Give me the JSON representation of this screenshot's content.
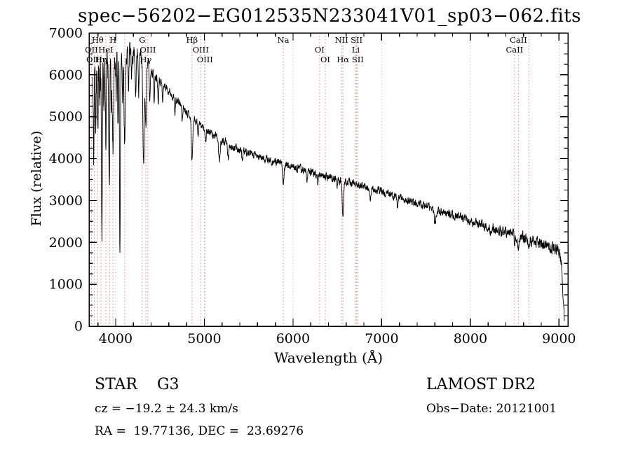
{
  "chart_data": {
    "type": "line",
    "title": "spec−56202−EG012535N233041V01_sp03−062.fits",
    "xlabel": "Wavelength (Å)",
    "ylabel": "Flux (relative)",
    "xlim": [
      3700,
      9100
    ],
    "ylim": [
      0,
      7000
    ],
    "xticks": [
      4000,
      5000,
      6000,
      7000,
      8000,
      9000
    ],
    "yticks": [
      0,
      1000,
      2000,
      3000,
      4000,
      5000,
      6000,
      7000
    ],
    "x_minor_step": 200,
    "y_minor_step": 250,
    "grid_on": true,
    "grid_color": "#c6c6c6",
    "line_marker_color": "#e08888",
    "series_color": "#000000",
    "x_start": 3740,
    "x_end": 9062,
    "x_step": 2,
    "continuum": [
      [
        3740,
        6050
      ],
      [
        3800,
        6250
      ],
      [
        3900,
        6350
      ],
      [
        4000,
        6450
      ],
      [
        4100,
        6550
      ],
      [
        4200,
        6550
      ],
      [
        4300,
        6420
      ],
      [
        4400,
        6130
      ],
      [
        4500,
        5870
      ],
      [
        4600,
        5620
      ],
      [
        4700,
        5370
      ],
      [
        4800,
        5130
      ],
      [
        4900,
        4920
      ],
      [
        5000,
        4720
      ],
      [
        5100,
        4560
      ],
      [
        5200,
        4430
      ],
      [
        5300,
        4310
      ],
      [
        5400,
        4210
      ],
      [
        5500,
        4120
      ],
      [
        5600,
        4050
      ],
      [
        5700,
        3980
      ],
      [
        5800,
        3920
      ],
      [
        5900,
        3860
      ],
      [
        6000,
        3800
      ],
      [
        6100,
        3740
      ],
      [
        6200,
        3680
      ],
      [
        6300,
        3620
      ],
      [
        6400,
        3560
      ],
      [
        6500,
        3500
      ],
      [
        6600,
        3440
      ],
      [
        6700,
        3390
      ],
      [
        6800,
        3330
      ],
      [
        6900,
        3270
      ],
      [
        7000,
        3210
      ],
      [
        7100,
        3140
      ],
      [
        7200,
        3070
      ],
      [
        7300,
        3000
      ],
      [
        7400,
        2930
      ],
      [
        7500,
        2860
      ],
      [
        7600,
        2790
      ],
      [
        7700,
        2720
      ],
      [
        7800,
        2650
      ],
      [
        7900,
        2580
      ],
      [
        8000,
        2510
      ],
      [
        8100,
        2440
      ],
      [
        8200,
        2370
      ],
      [
        8300,
        2300
      ],
      [
        8400,
        2230
      ],
      [
        8500,
        2160
      ],
      [
        8600,
        2100
      ],
      [
        8700,
        2040
      ],
      [
        8800,
        1960
      ],
      [
        8900,
        1880
      ],
      [
        8980,
        1820
      ],
      [
        9010,
        1760
      ],
      [
        9030,
        1400
      ],
      [
        9048,
        600
      ],
      [
        9062,
        80
      ]
    ],
    "absorption_dips": [
      [
        3752,
        2000,
        5
      ],
      [
        3775,
        1200,
        4
      ],
      [
        3798,
        1500,
        5
      ],
      [
        3820,
        1000,
        4
      ],
      [
        3845,
        4100,
        5
      ],
      [
        3868,
        1100,
        4
      ],
      [
        3890,
        1900,
        5
      ],
      [
        3928,
        2900,
        6
      ],
      [
        3952,
        1300,
        4
      ],
      [
        3970,
        2400,
        7
      ],
      [
        4005,
        1000,
        4
      ],
      [
        4026,
        1600,
        4
      ],
      [
        4048,
        4700,
        5
      ],
      [
        4078,
        1200,
        4
      ],
      [
        4102,
        2100,
        7
      ],
      [
        4144,
        900,
        4
      ],
      [
        4180,
        800,
        4
      ],
      [
        4227,
        1000,
        5
      ],
      [
        4260,
        800,
        4
      ],
      [
        4315,
        2600,
        8
      ],
      [
        4340,
        1600,
        6
      ],
      [
        4385,
        800,
        5
      ],
      [
        4435,
        700,
        5
      ],
      [
        4480,
        500,
        5
      ],
      [
        4530,
        450,
        5
      ],
      [
        4668,
        400,
        5
      ],
      [
        4750,
        350,
        5
      ],
      [
        4861,
        1050,
        8
      ],
      [
        4930,
        300,
        5
      ],
      [
        5015,
        280,
        5
      ],
      [
        5170,
        520,
        9
      ],
      [
        5270,
        350,
        7
      ],
      [
        5430,
        250,
        6
      ],
      [
        5890,
        450,
        7
      ],
      [
        6160,
        220,
        6
      ],
      [
        6280,
        260,
        5
      ],
      [
        6495,
        200,
        5
      ],
      [
        6563,
        880,
        8
      ],
      [
        6870,
        260,
        6
      ],
      [
        7180,
        240,
        6
      ],
      [
        7600,
        330,
        9
      ],
      [
        8230,
        200,
        6
      ],
      [
        8498,
        250,
        5
      ],
      [
        8542,
        330,
        6
      ],
      [
        8662,
        280,
        6
      ]
    ],
    "noise": {
      "seed": 11,
      "base_amp": 70,
      "blue_amp": 430,
      "blue_end": 4600,
      "red_amp": 45,
      "corr": 0.55
    },
    "spectral_lines": [
      {
        "label": "Hθ",
        "wav": 3798,
        "row": 1
      },
      {
        "label": "H",
        "wav": 3970,
        "row": 1
      },
      {
        "label": "G",
        "wav": 4300,
        "row": 1
      },
      {
        "label": "Hβ",
        "wav": 4861,
        "row": 1
      },
      {
        "label": "Na",
        "wav": 5890,
        "row": 1
      },
      {
        "label": "NII",
        "wav": 6548,
        "row": 1
      },
      {
        "label": "SII",
        "wav": 6717,
        "row": 1
      },
      {
        "label": "CaII",
        "wav": 8542,
        "row": 1
      },
      {
        "label": "OII",
        "wav": 3727,
        "row": 2
      },
      {
        "label": "HeI",
        "wav": 3889,
        "row": 2
      },
      {
        "label": "OIII",
        "wav": 4363,
        "row": 2
      },
      {
        "label": "OIII",
        "wav": 4959,
        "row": 2
      },
      {
        "label": "OI",
        "wav": 6300,
        "row": 2
      },
      {
        "label": "Li",
        "wav": 6708,
        "row": 2
      },
      {
        "label": "CaII",
        "wav": 8498,
        "row": 2
      },
      {
        "label": "OIII",
        "wav": 3760,
        "row": 3
      },
      {
        "label": "Hη",
        "wav": 3835,
        "row": 3
      },
      {
        "label": "Hγ",
        "wav": 4340,
        "row": 3
      },
      {
        "label": "OIII",
        "wav": 5007,
        "row": 3
      },
      {
        "label": "OI",
        "wav": 6364,
        "row": 3
      },
      {
        "label": "Hα",
        "wav": 6563,
        "row": 3
      },
      {
        "label": "SII",
        "wav": 6731,
        "row": 3
      }
    ],
    "extra_lines": [
      3933,
      4102,
      8662
    ]
  },
  "footer": {
    "class_label": "STAR    G3",
    "survey": "LAMOST DR2",
    "cz": "cz = −19.2 ± 24.3 km/s",
    "obs_date": "Obs−Date: 20121001",
    "radec": "RA =  19.77136, DEC =  23.69276"
  }
}
